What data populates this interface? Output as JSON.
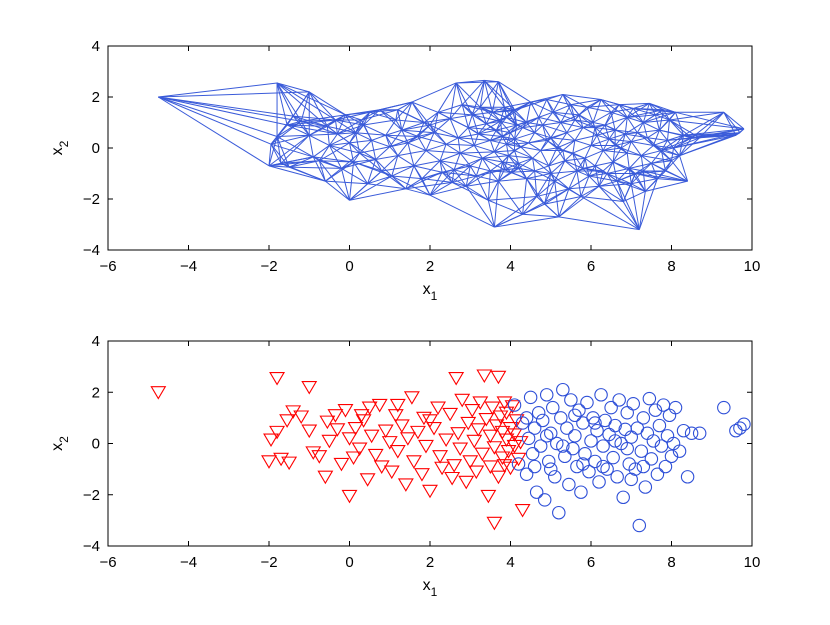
{
  "colors": {
    "edge": "#3a5bd9",
    "class_a": "#ff0000",
    "class_b": "#2f50d8",
    "axes": "#000000",
    "background": "#ffffff"
  },
  "chart_data": [
    {
      "type": "network",
      "name": "graph-plot",
      "xlabel": {
        "base": "x",
        "sub": "1"
      },
      "ylabel": {
        "base": "x",
        "sub": "2"
      },
      "xlim": [
        -6,
        10
      ],
      "ylim": [
        -4,
        4
      ],
      "xticks": [
        "−6",
        "−4",
        "−2",
        "0",
        "2",
        "4",
        "6",
        "8",
        "10"
      ],
      "yticks": [
        "−4",
        "−2",
        "0",
        "2",
        "4"
      ],
      "grid": false,
      "nodes": "same points as scatter plot (both classes)",
      "edges": "k-nearest-neighbor graph connecting nearby nodes"
    },
    {
      "type": "scatter",
      "name": "classified-scatter",
      "xlabel": {
        "base": "x",
        "sub": "1"
      },
      "ylabel": {
        "base": "x",
        "sub": "2"
      },
      "xlim": [
        -6,
        10
      ],
      "ylim": [
        -4,
        4
      ],
      "xticks": [
        "−6",
        "−4",
        "−2",
        "0",
        "2",
        "4",
        "6",
        "8",
        "10"
      ],
      "yticks": [
        "−4",
        "−2",
        "0",
        "2",
        "4"
      ],
      "grid": false,
      "series": [
        {
          "marker": "triangle-down",
          "color": "#ff0000",
          "points": [
            [
              -4.75,
              2.0
            ],
            [
              -1.8,
              2.55
            ],
            [
              -1.0,
              2.2
            ],
            [
              -1.95,
              0.15
            ],
            [
              -2.0,
              -0.7
            ],
            [
              -1.7,
              -0.6
            ],
            [
              -1.5,
              -0.75
            ],
            [
              -1.55,
              0.9
            ],
            [
              -1.4,
              1.25
            ],
            [
              -1.8,
              0.45
            ],
            [
              -1.2,
              1.05
            ],
            [
              -1.0,
              0.5
            ],
            [
              -0.9,
              -0.35
            ],
            [
              -0.75,
              -0.5
            ],
            [
              -0.6,
              -1.3
            ],
            [
              -0.5,
              0.1
            ],
            [
              -0.35,
              1.1
            ],
            [
              -0.3,
              0.55
            ],
            [
              -0.2,
              -0.8
            ],
            [
              -0.1,
              1.3
            ],
            [
              0.0,
              0.2
            ],
            [
              0.0,
              -2.05
            ],
            [
              0.1,
              -0.55
            ],
            [
              0.15,
              0.6
            ],
            [
              0.25,
              -0.2
            ],
            [
              0.35,
              0.9
            ],
            [
              0.45,
              -1.4
            ],
            [
              0.5,
              1.4
            ],
            [
              0.55,
              0.3
            ],
            [
              0.65,
              -0.45
            ],
            [
              0.75,
              1.5
            ],
            [
              0.8,
              -0.9
            ],
            [
              0.9,
              0.5
            ],
            [
              1.0,
              0.05
            ],
            [
              1.05,
              -1.1
            ],
            [
              1.15,
              1.1
            ],
            [
              1.2,
              -0.3
            ],
            [
              1.3,
              0.7
            ],
            [
              1.4,
              -1.6
            ],
            [
              1.45,
              0.2
            ],
            [
              1.55,
              1.8
            ],
            [
              1.6,
              -0.7
            ],
            [
              1.7,
              0.45
            ],
            [
              1.8,
              -1.2
            ],
            [
              1.85,
              1.0
            ],
            [
              1.9,
              -0.1
            ],
            [
              2.0,
              -1.85
            ],
            [
              2.1,
              0.6
            ],
            [
              2.2,
              1.4
            ],
            [
              2.25,
              -0.5
            ],
            [
              2.3,
              -0.95
            ],
            [
              2.4,
              0.15
            ],
            [
              2.5,
              1.15
            ],
            [
              2.55,
              -1.35
            ],
            [
              2.65,
              2.55
            ],
            [
              2.7,
              0.4
            ],
            [
              2.75,
              -0.2
            ],
            [
              2.8,
              1.7
            ],
            [
              2.9,
              -1.5
            ],
            [
              2.95,
              0.8
            ],
            [
              3.0,
              -0.7
            ],
            [
              3.05,
              1.3
            ],
            [
              3.1,
              0.1
            ],
            [
              3.15,
              -1.1
            ],
            [
              3.2,
              0.55
            ],
            [
              3.25,
              1.6
            ],
            [
              3.3,
              -0.4
            ],
            [
              3.35,
              2.65
            ],
            [
              3.4,
              0.95
            ],
            [
              3.45,
              -2.05
            ],
            [
              3.5,
              -0.9
            ],
            [
              3.5,
              0.3
            ],
            [
              3.55,
              1.4
            ],
            [
              3.6,
              -3.1
            ],
            [
              3.6,
              -0.15
            ],
            [
              3.65,
              0.7
            ],
            [
              3.7,
              2.6
            ],
            [
              3.7,
              -1.3
            ],
            [
              3.75,
              1.05
            ],
            [
              3.8,
              -0.55
            ],
            [
              3.8,
              0.45
            ],
            [
              3.85,
              1.6
            ],
            [
              3.85,
              -0.85
            ],
            [
              3.9,
              0.15
            ],
            [
              3.9,
              1.2
            ],
            [
              3.95,
              -0.3
            ],
            [
              4.0,
              0.6
            ],
            [
              4.0,
              -0.95
            ],
            [
              4.05,
              1.45
            ],
            [
              4.1,
              -0.1
            ],
            [
              4.1,
              0.35
            ],
            [
              4.15,
              0.9
            ],
            [
              4.2,
              -0.6
            ],
            [
              4.25,
              0.05
            ],
            [
              4.3,
              -2.6
            ],
            [
              -0.55,
              0.85
            ],
            [
              0.3,
              1.1
            ],
            [
              1.2,
              1.5
            ],
            [
              2.0,
              0.9
            ],
            [
              2.6,
              -0.85
            ]
          ]
        },
        {
          "marker": "circle",
          "color": "#2f50d8",
          "points": [
            [
              4.1,
              1.5
            ],
            [
              4.2,
              -0.8
            ],
            [
              4.3,
              0.8
            ],
            [
              4.4,
              -1.2
            ],
            [
              4.45,
              0.2
            ],
            [
              4.5,
              1.8
            ],
            [
              4.55,
              -0.4
            ],
            [
              4.6,
              0.6
            ],
            [
              4.65,
              -1.9
            ],
            [
              4.7,
              1.2
            ],
            [
              4.75,
              -0.1
            ],
            [
              4.8,
              0.9
            ],
            [
              4.85,
              -2.2
            ],
            [
              4.9,
              1.9
            ],
            [
              4.95,
              -0.7
            ],
            [
              5.0,
              0.4
            ],
            [
              5.05,
              1.4
            ],
            [
              5.1,
              -1.3
            ],
            [
              5.15,
              0.0
            ],
            [
              5.2,
              -2.7
            ],
            [
              5.25,
              1.0
            ],
            [
              5.3,
              2.1
            ],
            [
              5.35,
              -0.5
            ],
            [
              5.4,
              0.6
            ],
            [
              5.45,
              -1.6
            ],
            [
              5.5,
              1.7
            ],
            [
              5.55,
              -0.2
            ],
            [
              5.6,
              0.3
            ],
            [
              5.65,
              -0.9
            ],
            [
              5.7,
              1.3
            ],
            [
              5.75,
              -1.9
            ],
            [
              5.8,
              0.8
            ],
            [
              5.85,
              -0.4
            ],
            [
              5.9,
              1.6
            ],
            [
              5.95,
              -1.1
            ],
            [
              6.0,
              0.1
            ],
            [
              6.05,
              1.0
            ],
            [
              6.1,
              -0.7
            ],
            [
              6.15,
              0.5
            ],
            [
              6.2,
              -1.5
            ],
            [
              6.25,
              1.9
            ],
            [
              6.3,
              -0.1
            ],
            [
              6.35,
              0.9
            ],
            [
              6.4,
              -1.0
            ],
            [
              6.45,
              0.35
            ],
            [
              6.5,
              1.4
            ],
            [
              6.55,
              -0.55
            ],
            [
              6.6,
              0.7
            ],
            [
              6.65,
              -1.3
            ],
            [
              6.7,
              1.7
            ],
            [
              6.75,
              0.0
            ],
            [
              6.8,
              -2.1
            ],
            [
              6.85,
              0.55
            ],
            [
              6.9,
              1.2
            ],
            [
              6.95,
              -0.8
            ],
            [
              7.0,
              0.25
            ],
            [
              7.05,
              1.55
            ],
            [
              7.1,
              -1.0
            ],
            [
              7.15,
              0.6
            ],
            [
              7.2,
              -3.2
            ],
            [
              7.25,
              -0.3
            ],
            [
              7.3,
              1.0
            ],
            [
              7.35,
              -1.7
            ],
            [
              7.4,
              0.4
            ],
            [
              7.45,
              1.75
            ],
            [
              7.5,
              -0.6
            ],
            [
              7.55,
              0.1
            ],
            [
              7.6,
              1.3
            ],
            [
              7.65,
              -1.2
            ],
            [
              7.7,
              0.7
            ],
            [
              7.75,
              -0.1
            ],
            [
              7.8,
              1.5
            ],
            [
              7.85,
              -0.9
            ],
            [
              7.9,
              0.3
            ],
            [
              7.95,
              1.1
            ],
            [
              8.0,
              -0.5
            ],
            [
              8.05,
              0.0
            ],
            [
              8.1,
              1.4
            ],
            [
              8.2,
              -0.3
            ],
            [
              8.3,
              0.5
            ],
            [
              8.4,
              -1.3
            ],
            [
              8.5,
              0.4
            ],
            [
              8.7,
              0.4
            ],
            [
              9.3,
              1.4
            ],
            [
              9.6,
              0.5
            ],
            [
              9.7,
              0.6
            ],
            [
              9.8,
              0.75
            ],
            [
              5.0,
              -1.0
            ],
            [
              5.6,
              1.1
            ],
            [
              6.3,
              -0.9
            ],
            [
              4.4,
              1.0
            ],
            [
              4.6,
              -0.9
            ],
            [
              5.3,
              -0.1
            ],
            [
              6.1,
              0.8
            ],
            [
              6.9,
              -0.2
            ],
            [
              7.3,
              -0.9
            ],
            [
              4.9,
              0.3
            ],
            [
              5.8,
              -0.8
            ],
            [
              6.6,
              0.1
            ],
            [
              7.0,
              -1.4
            ]
          ]
        }
      ]
    }
  ]
}
